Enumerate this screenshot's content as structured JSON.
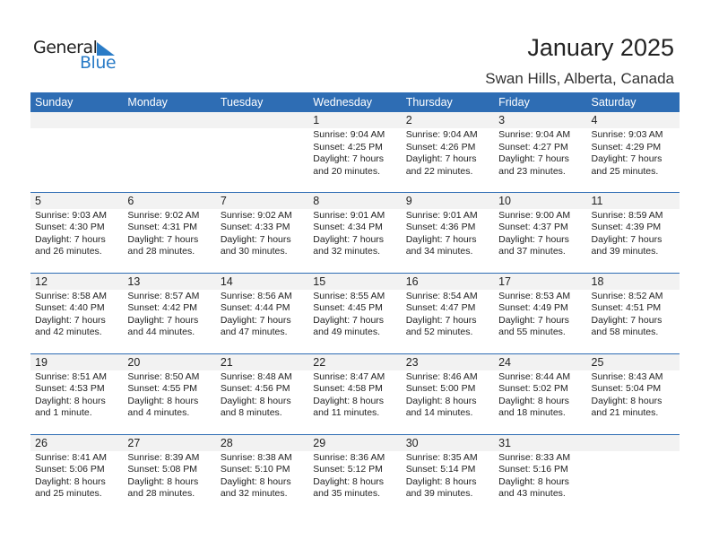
{
  "logo": {
    "general": "General",
    "blue": "Blue"
  },
  "title": "January 2025",
  "subtitle": "Swan Hills, Alberta, Canada",
  "weekdays": [
    "Sunday",
    "Monday",
    "Tuesday",
    "Wednesday",
    "Thursday",
    "Friday",
    "Saturday"
  ],
  "weeks": [
    [
      null,
      null,
      null,
      {
        "day": "1",
        "sunrise": "Sunrise: 9:04 AM",
        "sunset": "Sunset: 4:25 PM",
        "daylight1": "Daylight: 7 hours",
        "daylight2": "and 20 minutes."
      },
      {
        "day": "2",
        "sunrise": "Sunrise: 9:04 AM",
        "sunset": "Sunset: 4:26 PM",
        "daylight1": "Daylight: 7 hours",
        "daylight2": "and 22 minutes."
      },
      {
        "day": "3",
        "sunrise": "Sunrise: 9:04 AM",
        "sunset": "Sunset: 4:27 PM",
        "daylight1": "Daylight: 7 hours",
        "daylight2": "and 23 minutes."
      },
      {
        "day": "4",
        "sunrise": "Sunrise: 9:03 AM",
        "sunset": "Sunset: 4:29 PM",
        "daylight1": "Daylight: 7 hours",
        "daylight2": "and 25 minutes."
      }
    ],
    [
      {
        "day": "5",
        "sunrise": "Sunrise: 9:03 AM",
        "sunset": "Sunset: 4:30 PM",
        "daylight1": "Daylight: 7 hours",
        "daylight2": "and 26 minutes."
      },
      {
        "day": "6",
        "sunrise": "Sunrise: 9:02 AM",
        "sunset": "Sunset: 4:31 PM",
        "daylight1": "Daylight: 7 hours",
        "daylight2": "and 28 minutes."
      },
      {
        "day": "7",
        "sunrise": "Sunrise: 9:02 AM",
        "sunset": "Sunset: 4:33 PM",
        "daylight1": "Daylight: 7 hours",
        "daylight2": "and 30 minutes."
      },
      {
        "day": "8",
        "sunrise": "Sunrise: 9:01 AM",
        "sunset": "Sunset: 4:34 PM",
        "daylight1": "Daylight: 7 hours",
        "daylight2": "and 32 minutes."
      },
      {
        "day": "9",
        "sunrise": "Sunrise: 9:01 AM",
        "sunset": "Sunset: 4:36 PM",
        "daylight1": "Daylight: 7 hours",
        "daylight2": "and 34 minutes."
      },
      {
        "day": "10",
        "sunrise": "Sunrise: 9:00 AM",
        "sunset": "Sunset: 4:37 PM",
        "daylight1": "Daylight: 7 hours",
        "daylight2": "and 37 minutes."
      },
      {
        "day": "11",
        "sunrise": "Sunrise: 8:59 AM",
        "sunset": "Sunset: 4:39 PM",
        "daylight1": "Daylight: 7 hours",
        "daylight2": "and 39 minutes."
      }
    ],
    [
      {
        "day": "12",
        "sunrise": "Sunrise: 8:58 AM",
        "sunset": "Sunset: 4:40 PM",
        "daylight1": "Daylight: 7 hours",
        "daylight2": "and 42 minutes."
      },
      {
        "day": "13",
        "sunrise": "Sunrise: 8:57 AM",
        "sunset": "Sunset: 4:42 PM",
        "daylight1": "Daylight: 7 hours",
        "daylight2": "and 44 minutes."
      },
      {
        "day": "14",
        "sunrise": "Sunrise: 8:56 AM",
        "sunset": "Sunset: 4:44 PM",
        "daylight1": "Daylight: 7 hours",
        "daylight2": "and 47 minutes."
      },
      {
        "day": "15",
        "sunrise": "Sunrise: 8:55 AM",
        "sunset": "Sunset: 4:45 PM",
        "daylight1": "Daylight: 7 hours",
        "daylight2": "and 49 minutes."
      },
      {
        "day": "16",
        "sunrise": "Sunrise: 8:54 AM",
        "sunset": "Sunset: 4:47 PM",
        "daylight1": "Daylight: 7 hours",
        "daylight2": "and 52 minutes."
      },
      {
        "day": "17",
        "sunrise": "Sunrise: 8:53 AM",
        "sunset": "Sunset: 4:49 PM",
        "daylight1": "Daylight: 7 hours",
        "daylight2": "and 55 minutes."
      },
      {
        "day": "18",
        "sunrise": "Sunrise: 8:52 AM",
        "sunset": "Sunset: 4:51 PM",
        "daylight1": "Daylight: 7 hours",
        "daylight2": "and 58 minutes."
      }
    ],
    [
      {
        "day": "19",
        "sunrise": "Sunrise: 8:51 AM",
        "sunset": "Sunset: 4:53 PM",
        "daylight1": "Daylight: 8 hours",
        "daylight2": "and 1 minute."
      },
      {
        "day": "20",
        "sunrise": "Sunrise: 8:50 AM",
        "sunset": "Sunset: 4:55 PM",
        "daylight1": "Daylight: 8 hours",
        "daylight2": "and 4 minutes."
      },
      {
        "day": "21",
        "sunrise": "Sunrise: 8:48 AM",
        "sunset": "Sunset: 4:56 PM",
        "daylight1": "Daylight: 8 hours",
        "daylight2": "and 8 minutes."
      },
      {
        "day": "22",
        "sunrise": "Sunrise: 8:47 AM",
        "sunset": "Sunset: 4:58 PM",
        "daylight1": "Daylight: 8 hours",
        "daylight2": "and 11 minutes."
      },
      {
        "day": "23",
        "sunrise": "Sunrise: 8:46 AM",
        "sunset": "Sunset: 5:00 PM",
        "daylight1": "Daylight: 8 hours",
        "daylight2": "and 14 minutes."
      },
      {
        "day": "24",
        "sunrise": "Sunrise: 8:44 AM",
        "sunset": "Sunset: 5:02 PM",
        "daylight1": "Daylight: 8 hours",
        "daylight2": "and 18 minutes."
      },
      {
        "day": "25",
        "sunrise": "Sunrise: 8:43 AM",
        "sunset": "Sunset: 5:04 PM",
        "daylight1": "Daylight: 8 hours",
        "daylight2": "and 21 minutes."
      }
    ],
    [
      {
        "day": "26",
        "sunrise": "Sunrise: 8:41 AM",
        "sunset": "Sunset: 5:06 PM",
        "daylight1": "Daylight: 8 hours",
        "daylight2": "and 25 minutes."
      },
      {
        "day": "27",
        "sunrise": "Sunrise: 8:39 AM",
        "sunset": "Sunset: 5:08 PM",
        "daylight1": "Daylight: 8 hours",
        "daylight2": "and 28 minutes."
      },
      {
        "day": "28",
        "sunrise": "Sunrise: 8:38 AM",
        "sunset": "Sunset: 5:10 PM",
        "daylight1": "Daylight: 8 hours",
        "daylight2": "and 32 minutes."
      },
      {
        "day": "29",
        "sunrise": "Sunrise: 8:36 AM",
        "sunset": "Sunset: 5:12 PM",
        "daylight1": "Daylight: 8 hours",
        "daylight2": "and 35 minutes."
      },
      {
        "day": "30",
        "sunrise": "Sunrise: 8:35 AM",
        "sunset": "Sunset: 5:14 PM",
        "daylight1": "Daylight: 8 hours",
        "daylight2": "and 39 minutes."
      },
      {
        "day": "31",
        "sunrise": "Sunrise: 8:33 AM",
        "sunset": "Sunset: 5:16 PM",
        "daylight1": "Daylight: 8 hours",
        "daylight2": "and 43 minutes."
      },
      null
    ]
  ],
  "colors": {
    "header": "#2e6db4",
    "logo_blue": "#2a7cc7",
    "band": "#f2f2f2"
  }
}
